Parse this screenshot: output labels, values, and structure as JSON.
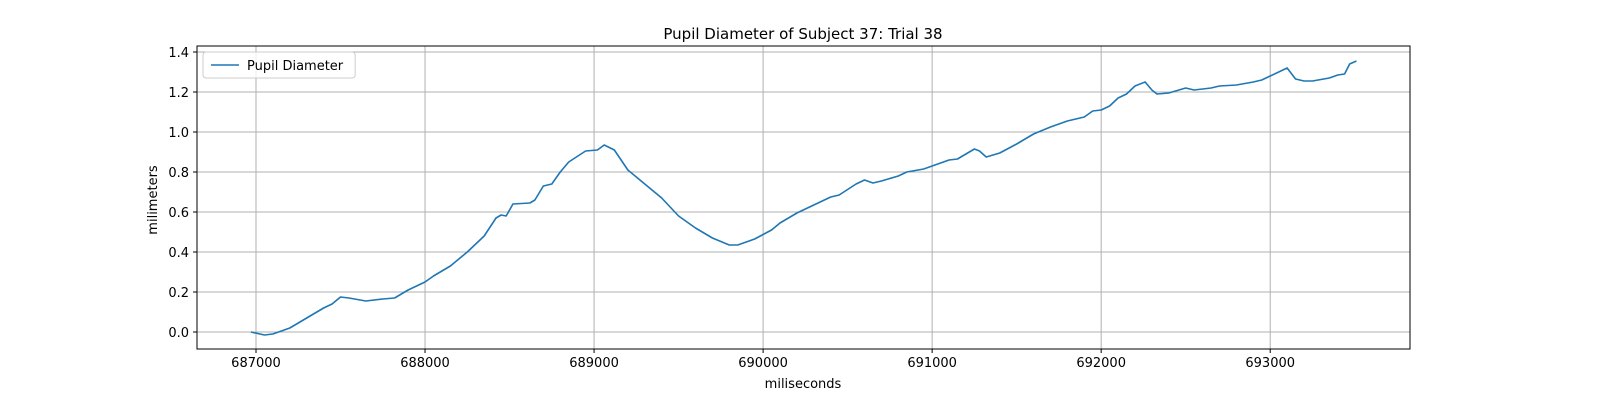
{
  "chart_data": {
    "type": "line",
    "title": "Pupil Diameter of Subject 37: Trial 38",
    "xlabel": "miliseconds",
    "ylabel": "milimeters",
    "legend": "upper left",
    "grid": true,
    "x": [
      686970,
      687050,
      687100,
      687200,
      687300,
      687400,
      687450,
      687500,
      687550,
      687650,
      687750,
      687820,
      687900,
      688000,
      688050,
      688150,
      688250,
      688300,
      688350,
      688420,
      688450,
      688480,
      688520,
      688620,
      688650,
      688700,
      688750,
      688800,
      688850,
      688950,
      689020,
      689060,
      689120,
      689200,
      689300,
      689400,
      689500,
      689600,
      689700,
      689800,
      689850,
      689950,
      690050,
      690100,
      690200,
      690300,
      690350,
      690400,
      690450,
      690550,
      690600,
      690650,
      690700,
      690800,
      690850,
      690950,
      691100,
      691150,
      691200,
      691250,
      691280,
      691320,
      691400,
      691500,
      691600,
      691700,
      691800,
      691900,
      691950,
      692000,
      692050,
      692100,
      692150,
      692200,
      692260,
      692300,
      692330,
      692400,
      692500,
      692550,
      692650,
      692700,
      692800,
      692900,
      692950,
      693000,
      693100,
      693150,
      693200,
      693250,
      693350,
      693400,
      693440,
      693470,
      693510
    ],
    "series": [
      {
        "name": "Pupil Diameter",
        "color": "#1f77b4",
        "values": [
          0.0,
          -0.015,
          -0.01,
          0.02,
          0.07,
          0.12,
          0.14,
          0.175,
          0.17,
          0.155,
          0.165,
          0.17,
          0.21,
          0.25,
          0.28,
          0.33,
          0.4,
          0.44,
          0.48,
          0.57,
          0.585,
          0.58,
          0.64,
          0.645,
          0.66,
          0.73,
          0.74,
          0.8,
          0.85,
          0.905,
          0.91,
          0.935,
          0.91,
          0.81,
          0.74,
          0.67,
          0.58,
          0.52,
          0.47,
          0.435,
          0.435,
          0.465,
          0.51,
          0.545,
          0.595,
          0.635,
          0.655,
          0.675,
          0.685,
          0.74,
          0.76,
          0.745,
          0.755,
          0.78,
          0.8,
          0.815,
          0.86,
          0.865,
          0.89,
          0.915,
          0.905,
          0.875,
          0.895,
          0.94,
          0.99,
          1.025,
          1.055,
          1.075,
          1.105,
          1.11,
          1.13,
          1.17,
          1.19,
          1.23,
          1.25,
          1.21,
          1.19,
          1.195,
          1.22,
          1.21,
          1.22,
          1.23,
          1.235,
          1.25,
          1.26,
          1.28,
          1.32,
          1.265,
          1.255,
          1.255,
          1.27,
          1.285,
          1.29,
          1.34,
          1.355
        ]
      }
    ],
    "xlim": [
      686651,
      693827
    ],
    "xticks": [
      687000,
      688000,
      689000,
      690000,
      691000,
      692000,
      693000
    ],
    "ylim": [
      -0.085,
      1.43
    ],
    "yticks": [
      {
        "value": 0,
        "label": "0.0"
      },
      0.2,
      0.4,
      0.6,
      0.8,
      {
        "value": 1,
        "label": "1.0"
      },
      1.2,
      1.4
    ]
  }
}
